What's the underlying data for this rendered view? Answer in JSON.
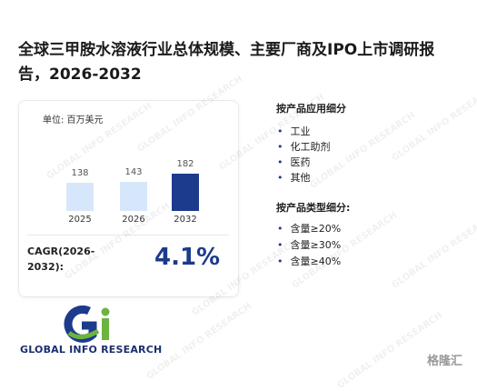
{
  "header": {
    "title": "全球三甲胺水溶液行业总体规模、主要厂商及IPO上市调研报告，2026-2032"
  },
  "market_card": {
    "unit": "单位: 百万美元",
    "categories": [
      "2025",
      "2026",
      "2032"
    ],
    "values": [
      138,
      143,
      182
    ],
    "cagr_label": "CAGR(2026-2032):",
    "cagr_value": "4.1%"
  },
  "segments": [
    {
      "title": "按产品应用细分",
      "items": [
        "工业",
        "化工助剂",
        "医药",
        "其他"
      ]
    },
    {
      "title": "按产品类型细分:",
      "items": [
        "含量≥20%",
        "含量≥30%",
        "含量≥40%"
      ]
    }
  ],
  "logo": {
    "text": "GLOBAL INFO RESEARCH"
  },
  "watermark": "GLOBAL INFO RESEARCH",
  "source_logo": "格隆汇"
}
